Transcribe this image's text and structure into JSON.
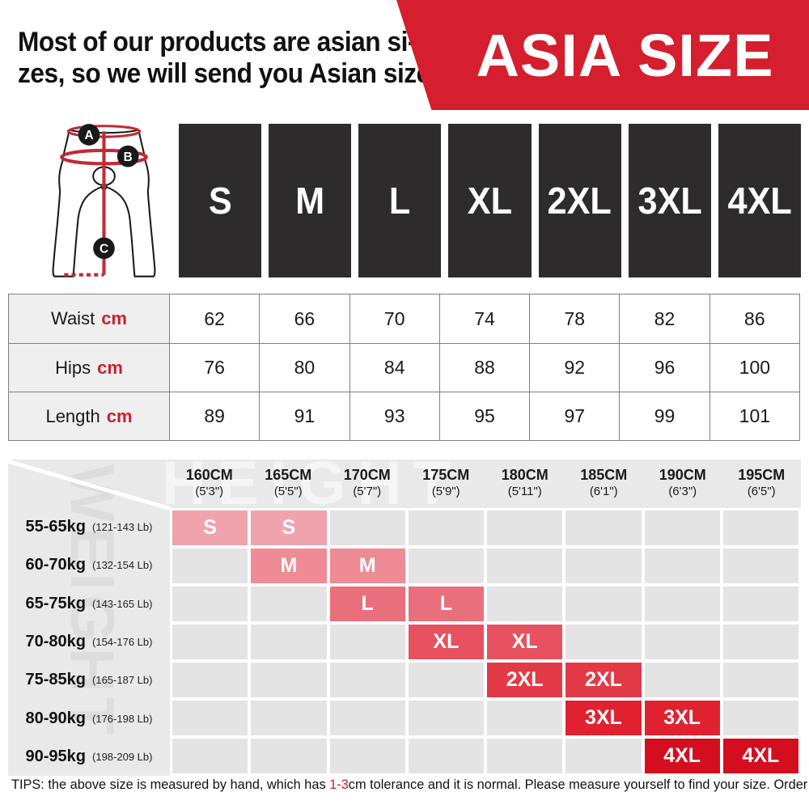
{
  "header": {
    "note_line1": "Most of our products are asian si-",
    "note_line2": "zes, so we will send you Asian sizes",
    "banner": "ASIA SIZE"
  },
  "diagram": {
    "markers": {
      "waist": "A",
      "hips": "B",
      "length": "C"
    }
  },
  "sizes": [
    "S",
    "M",
    "L",
    "XL",
    "2XL",
    "3XL",
    "4XL"
  ],
  "measure_table": {
    "rows": [
      {
        "label": "Waist",
        "unit": "cm",
        "values": [
          "62",
          "66",
          "70",
          "74",
          "78",
          "82",
          "86"
        ]
      },
      {
        "label": "Hips",
        "unit": "cm",
        "values": [
          "76",
          "80",
          "84",
          "88",
          "92",
          "96",
          "100"
        ]
      },
      {
        "label": "Length",
        "unit": "cm",
        "values": [
          "89",
          "91",
          "93",
          "95",
          "97",
          "99",
          "101"
        ]
      }
    ]
  },
  "matrix": {
    "watermark_height": "HEIGHT",
    "watermark_weight": "WEIGHT",
    "columns": [
      {
        "cm": "160CM",
        "ft": "(5'3\")"
      },
      {
        "cm": "165CM",
        "ft": "(5'5\")"
      },
      {
        "cm": "170CM",
        "ft": "(5'7\")"
      },
      {
        "cm": "175CM",
        "ft": "(5'9\")"
      },
      {
        "cm": "180CM",
        "ft": "(5'11\")"
      },
      {
        "cm": "185CM",
        "ft": "(6'1\")"
      },
      {
        "cm": "190CM",
        "ft": "(6'3\")"
      },
      {
        "cm": "195CM",
        "ft": "(6'5\")"
      }
    ],
    "rows": [
      {
        "kg": "55-65kg",
        "lb": "(121-143 Lb)",
        "size": "S",
        "cols": [
          0,
          1
        ],
        "color": "#f0a3ad"
      },
      {
        "kg": "60-70kg",
        "lb": "(132-154 Lb)",
        "size": "M",
        "cols": [
          1,
          2
        ],
        "color": "#ee8b95"
      },
      {
        "kg": "65-75kg",
        "lb": "(143-165 Lb)",
        "size": "L",
        "cols": [
          2,
          3
        ],
        "color": "#ea6f7c"
      },
      {
        "kg": "70-80kg",
        "lb": "(154-176 Lb)",
        "size": "XL",
        "cols": [
          3,
          4
        ],
        "color": "#e6525f"
      },
      {
        "kg": "75-85kg",
        "lb": "(165-187 Lb)",
        "size": "2XL",
        "cols": [
          4,
          5
        ],
        "color": "#e33a47"
      },
      {
        "kg": "80-90kg",
        "lb": "(176-198 Lb)",
        "size": "3XL",
        "cols": [
          5,
          6
        ],
        "color": "#e02230"
      },
      {
        "kg": "90-95kg",
        "lb": "(198-209 Lb)",
        "size": "4XL",
        "cols": [
          6,
          7
        ],
        "color": "#d40e1e"
      }
    ]
  },
  "tips": {
    "prefix": "TIPS:  the above size is measured by hand, which has ",
    "red": "1-3",
    "suffix": "cm tolerance and it is normal. Please measure yourself to find your size. Order ONE size up if you like loose version."
  },
  "colors": {
    "banner_red": "#d51e2e",
    "accent_red": "#cc1f2c",
    "box_dark": "#2e2b2c",
    "matrix_bg": "#e9e9e9",
    "cell_empty": "#e4e4e4",
    "table_label_bg": "#efefef"
  }
}
